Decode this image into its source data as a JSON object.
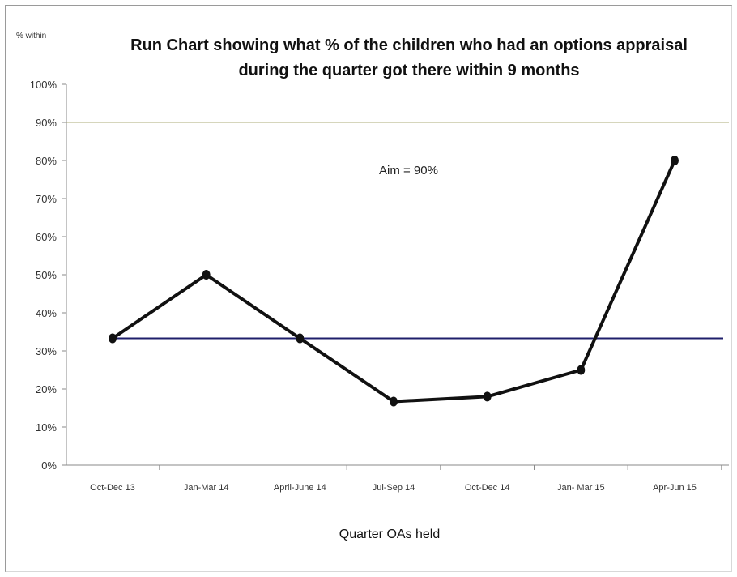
{
  "chart_data": {
    "type": "line",
    "title_lines": [
      "Run Chart showing what % of the children who had an options appraisal",
      "during the quarter got there within 9 months"
    ],
    "ylabel": "% within",
    "xlabel": "Quarter OAs held",
    "ylim": [
      0,
      100
    ],
    "yticks": [
      0,
      10,
      20,
      30,
      40,
      50,
      60,
      70,
      80,
      90,
      100
    ],
    "ytick_labels": [
      "0%",
      "10%",
      "20%",
      "30%",
      "40%",
      "50%",
      "60%",
      "70%",
      "80%",
      "90%",
      "100%"
    ],
    "categories": [
      "Oct-Dec 13",
      "Jan-Mar 14",
      "April-June 14",
      "Jul-Sep 14",
      "Oct-Dec 14",
      "Jan- Mar 15",
      "Apr-Jun 15"
    ],
    "series": [
      {
        "values": [
          33.3,
          50,
          33.3,
          16.7,
          18,
          25,
          80
        ],
        "color": "#111111"
      }
    ],
    "reference_lines": [
      {
        "value": 90,
        "color": "#c9c9a6"
      },
      {
        "value": 33.3,
        "color": "#1f1f6b"
      }
    ],
    "annotation": "Aim = 90%"
  }
}
